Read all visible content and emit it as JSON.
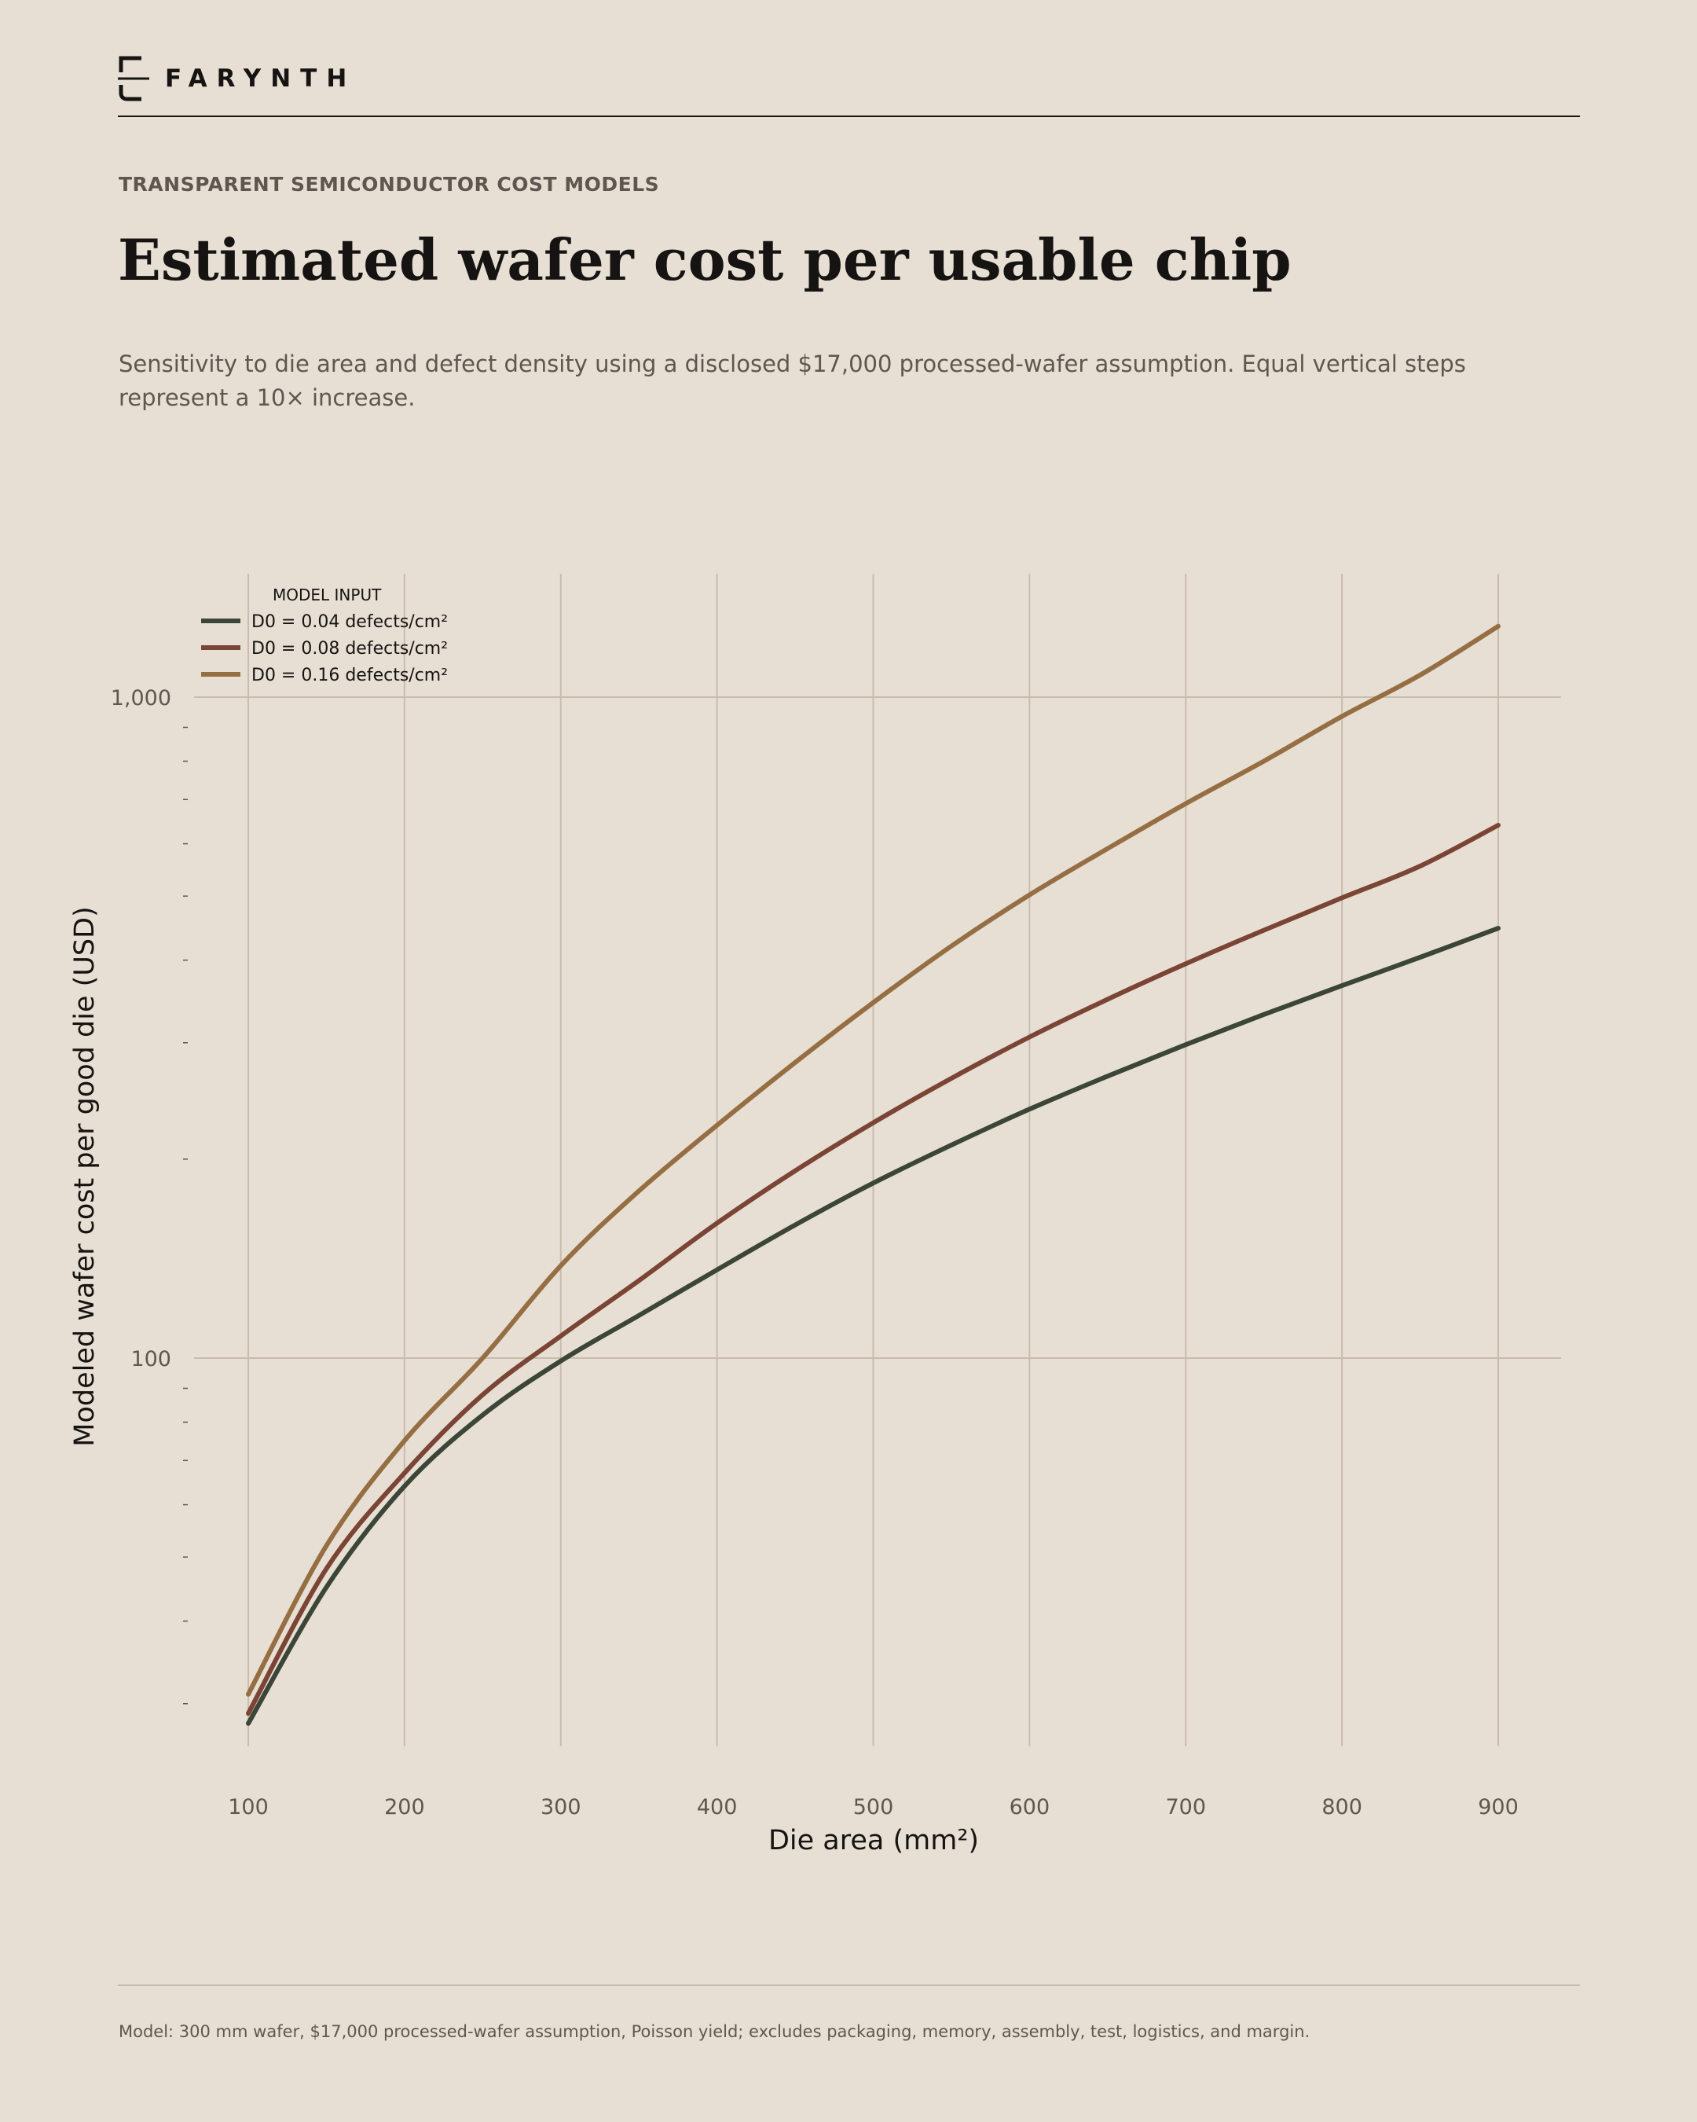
{
  "brand": {
    "name": "FARYNTH",
    "logo_icon": "farynth-bracket-logo"
  },
  "header": {
    "eyebrow": "TRANSPARENT SEMICONDUCTOR COST MODELS",
    "title": "Estimated wafer cost per usable chip",
    "subtitle": "Sensitivity to die area and defect density using a disclosed $17,000 processed-wafer assumption. Equal vertical steps represent a 10× increase."
  },
  "chart_data": {
    "type": "line",
    "title": "",
    "xlabel": "Die area (mm²)",
    "ylabel": "Modeled wafer cost per good die (USD)",
    "x_scale": "linear",
    "y_scale": "log",
    "xlim": [
      100,
      900
    ],
    "ylim": [
      28,
      1600
    ],
    "x_ticks": [
      100,
      200,
      300,
      400,
      500,
      600,
      700,
      800,
      900
    ],
    "x_tick_labels": [
      "100",
      "200",
      "300",
      "400",
      "500",
      "600",
      "700",
      "800",
      "900"
    ],
    "y_ticks": [
      100,
      1000
    ],
    "y_tick_labels": [
      "100",
      "1,000"
    ],
    "grid": true,
    "legend": {
      "title": "MODEL INPUT",
      "position": "top-left"
    },
    "x": [
      100,
      150,
      200,
      250,
      300,
      350,
      400,
      450,
      500,
      550,
      600,
      650,
      700,
      750,
      800,
      850,
      900
    ],
    "series": [
      {
        "name": "D0 = 0.04 defects/cm²",
        "color": "#3b4638",
        "values": [
          28.0,
          45.0,
          64.0,
          82.0,
          99.0,
          116.0,
          136.0,
          159.0,
          184.0,
          210.0,
          238.0,
          267.0,
          298.0,
          331.0,
          366.0,
          404.0,
          447.0
        ]
      },
      {
        "name": "D0 = 0.08 defects/cm²",
        "color": "#7a4535",
        "values": [
          29.0,
          48.0,
          67.0,
          88.0,
          108.0,
          131.0,
          160.0,
          192.0,
          227.0,
          265.0,
          306.0,
          349.0,
          395.0,
          444.0,
          497.0,
          555.0,
          640.0
        ]
      },
      {
        "name": "D0 = 0.16 defects/cm²",
        "color": "#966e43",
        "values": [
          31.0,
          52.0,
          75.0,
          100.0,
          138.0,
          179.0,
          225.0,
          280.0,
          345.0,
          420.0,
          502.0,
          590.0,
          690.0,
          800.0,
          935.0,
          1080.0,
          1280.0
        ]
      }
    ]
  },
  "footer": {
    "note": "Model: 300 mm wafer, $17,000 processed-wafer assumption, Poisson yield; excludes packaging, memory, assembly, test, logistics, and margin."
  }
}
